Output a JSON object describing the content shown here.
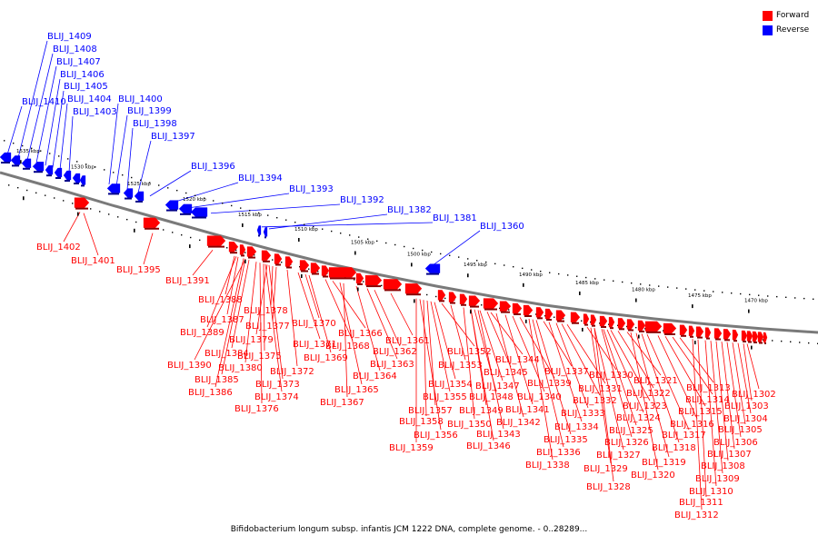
{
  "legend": {
    "forward_label": "Forward",
    "reverse_label": "Reverse",
    "forward_color": "#ff0000",
    "reverse_color": "#0000ff"
  },
  "caption": "Bifidobacterium longum subsp. infantis JCM 1222 DNA, complete genome. - 0..28289...",
  "axis_ticks": [
    "1535 kbp",
    "1530 kbp",
    "1525 kbp",
    "1520 kbp",
    "1515 kbp",
    "1510 kbp",
    "1505 kbp",
    "1500 kbp",
    "1495 kbp",
    "1490 kbp",
    "1485 kbp",
    "1480 kbp",
    "1475 kbp",
    "1470 kbp"
  ],
  "reverse_genes": [
    "BLIJ_1409",
    "BLIJ_1408",
    "BLIJ_1407",
    "BLIJ_1406",
    "BLIJ_1405",
    "BLIJ_1410",
    "BLIJ_1404",
    "BLIJ_1403",
    "BLIJ_1400",
    "BLIJ_1399",
    "BLIJ_1398",
    "BLIJ_1397",
    "BLIJ_1396",
    "BLIJ_1394",
    "BLIJ_1393",
    "BLIJ_1392",
    "BLIJ_1382",
    "BLIJ_1381",
    "BLIJ_1360"
  ],
  "forward_genes": [
    "BLIJ_1402",
    "BLIJ_1401",
    "BLIJ_1395",
    "BLIJ_1391",
    "BLIJ_1388",
    "BLIJ_1387",
    "BLIJ_1389",
    "BLIJ_1390",
    "BLIJ_1384",
    "BLIJ_1385",
    "BLIJ_1386",
    "BLIJ_1380",
    "BLIJ_1379",
    "BLIJ_1378",
    "BLIJ_1377",
    "BLIJ_1375",
    "BLIJ_1373",
    "BLIJ_1374",
    "BLIJ_1376",
    "BLIJ_1372",
    "BLIJ_1371",
    "BLIJ_1370",
    "BLIJ_1369",
    "BLIJ_1368",
    "BLIJ_1366",
    "BLIJ_1365",
    "BLIJ_1367",
    "BLIJ_1364",
    "BLIJ_1363",
    "BLIJ_1362",
    "BLIJ_1361",
    "BLIJ_1352",
    "BLIJ_1353",
    "BLIJ_1354",
    "BLIJ_1355",
    "BLIJ_1357",
    "BLIJ_1358",
    "BLIJ_1356",
    "BLIJ_1359",
    "BLIJ_1350",
    "BLIJ_1349",
    "BLIJ_1348",
    "BLIJ_1347",
    "BLIJ_1345",
    "BLIJ_1344",
    "BLIJ_1346",
    "BLIJ_1343",
    "BLIJ_1342",
    "BLIJ_1341",
    "BLIJ_1340",
    "BLIJ_1339",
    "BLIJ_1337",
    "BLIJ_1338",
    "BLIJ_1336",
    "BLIJ_1335",
    "BLIJ_1334",
    "BLIJ_1333",
    "BLIJ_1332",
    "BLIJ_1331",
    "BLIJ_1330",
    "BLIJ_1329",
    "BLIJ_1328",
    "BLIJ_1327",
    "BLIJ_1326",
    "BLIJ_1325",
    "BLIJ_1324",
    "BLIJ_1323",
    "BLIJ_1322",
    "BLIJ_1321",
    "BLIJ_1320",
    "BLIJ_1319",
    "BLIJ_1318",
    "BLIJ_1317",
    "BLIJ_1316",
    "BLIJ_1315",
    "BLIJ_1314",
    "BLIJ_1313",
    "BLIJ_1312",
    "BLIJ_1311",
    "BLIJ_1310",
    "BLIJ_1309",
    "BLIJ_1308",
    "BLIJ_1307",
    "BLIJ_1306",
    "BLIJ_1305",
    "BLIJ_1304",
    "BLIJ_1303",
    "BLIJ_1302"
  ]
}
